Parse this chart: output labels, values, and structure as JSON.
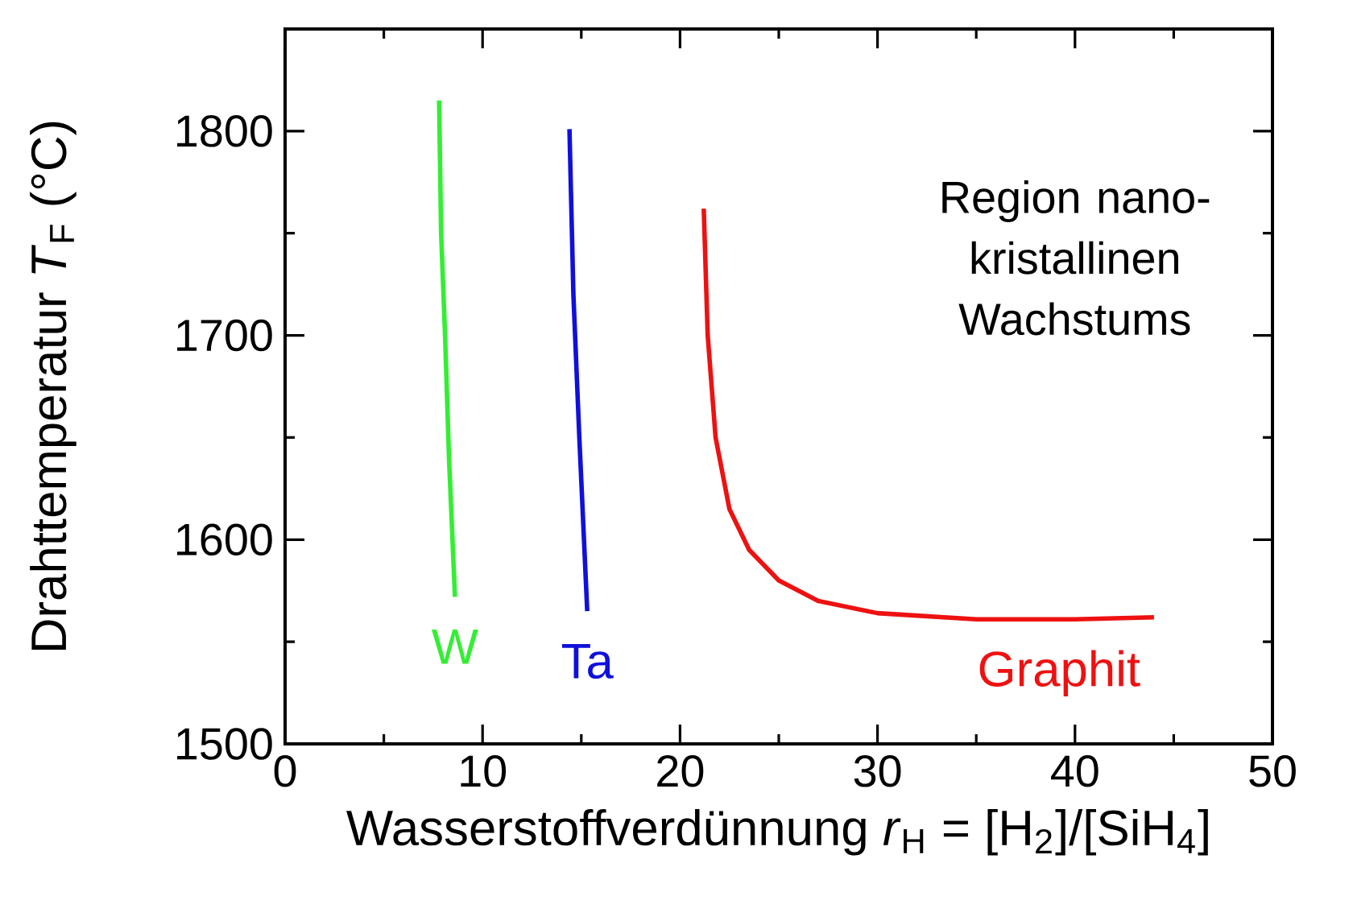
{
  "chart_data": {
    "type": "line",
    "xlabel": "Wasserstoffverdünnung *r*$_{H}$ = [H$_{2}$]/[SiH$_{4}$]",
    "ylabel": "Drahttemperatur *T*$_{F}$ (°C)",
    "xlim": [
      0,
      50
    ],
    "ylim": [
      1500,
      1850
    ],
    "xticks": [
      0,
      10,
      20,
      30,
      40,
      50
    ],
    "yticks": [
      1500,
      1600,
      1700,
      1800
    ],
    "marker": "none",
    "line_style": "solid",
    "annotations": [
      "Region nano-kristallinen Wachstums"
    ],
    "series": [
      {
        "name": "W",
        "color": "#33ee33",
        "x": [
          7.8,
          7.9,
          8.1,
          8.3,
          8.6
        ],
        "values": [
          1815,
          1750,
          1700,
          1640,
          1572
        ]
      },
      {
        "name": "Ta",
        "color": "#1010dd",
        "x": [
          14.4,
          14.6,
          14.9,
          15.3
        ],
        "values": [
          1801,
          1720,
          1650,
          1565
        ]
      },
      {
        "name": "Graphit",
        "color": "#ee1111",
        "x": [
          21.2,
          21.4,
          21.8,
          22.5,
          23.5,
          25,
          27,
          30,
          35,
          40,
          44
        ],
        "values": [
          1762,
          1700,
          1650,
          1615,
          1595,
          1580,
          1570,
          1564,
          1561,
          1561,
          1562
        ]
      }
    ]
  }
}
